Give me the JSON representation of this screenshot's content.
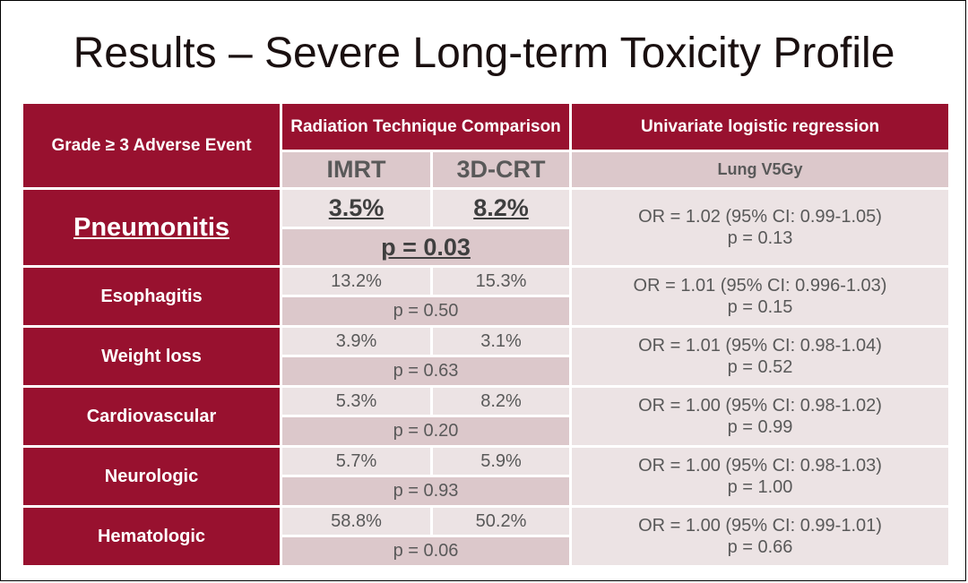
{
  "title": "Results – Severe Long-term Toxicity Profile",
  "header": {
    "event_col": "Grade ≥ 3 Adverse Event",
    "technique_col": "Radiation Technique Comparison",
    "regression_col": "Univariate logistic regression",
    "imrt": "IMRT",
    "crt": "3D-CRT",
    "lung": "Lung V5Gy"
  },
  "rows": [
    {
      "event": "Pneumonitis",
      "imrt": "3.5%",
      "crt": "8.2%",
      "p": "p = 0.03",
      "or": "OR = 1.02 (95% CI: 0.99-1.05)",
      "or_p": "p = 0.13"
    },
    {
      "event": "Esophagitis",
      "imrt": "13.2%",
      "crt": "15.3%",
      "p": "p = 0.50",
      "or": "OR = 1.01 (95% CI: 0.996-1.03)",
      "or_p": "p = 0.15"
    },
    {
      "event": "Weight loss",
      "imrt": "3.9%",
      "crt": "3.1%",
      "p": "p = 0.63",
      "or": "OR = 1.01 (95% CI: 0.98-1.04)",
      "or_p": "p = 0.52"
    },
    {
      "event": "Cardiovascular",
      "imrt": "5.3%",
      "crt": "8.2%",
      "p": "p = 0.20",
      "or": "OR = 1.00 (95% CI: 0.98-1.02)",
      "or_p": "p = 0.99"
    },
    {
      "event": "Neurologic",
      "imrt": "5.7%",
      "crt": "5.9%",
      "p": "p = 0.93",
      "or": "OR = 1.00 (95% CI: 0.98-1.03)",
      "or_p": "p = 1.00"
    },
    {
      "event": "Hematologic",
      "imrt": "58.8%",
      "crt": "50.2%",
      "p": "p = 0.06",
      "or": "OR = 1.00 (95% CI: 0.99-1.01)",
      "or_p": "p = 0.66"
    }
  ],
  "colors": {
    "accent": "#98112f",
    "sub": "#dcc8cb",
    "light": "#ece3e4"
  }
}
